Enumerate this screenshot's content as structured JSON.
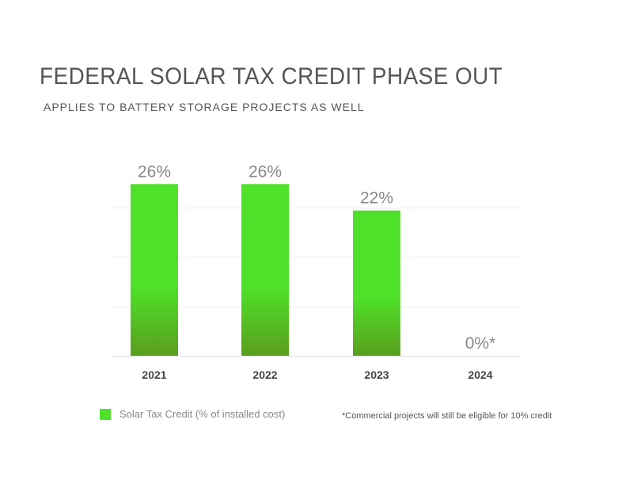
{
  "header": {
    "title": "FEDERAL SOLAR TAX CREDIT PHASE OUT",
    "subtitle": "APPLIES TO BATTERY STORAGE PROJECTS AS WELL"
  },
  "chart_data": {
    "type": "bar",
    "categories": [
      "2021",
      "2022",
      "2023",
      "2024"
    ],
    "series": [
      {
        "name": "Solar Tax Credit (% of installed cost)",
        "values": [
          26,
          26,
          22,
          0
        ],
        "labels": [
          "26%",
          "26%",
          "22%",
          "0%*"
        ]
      }
    ],
    "ylim": [
      0,
      30
    ],
    "grid": true,
    "legend": "bottom-left",
    "colors": {
      "bar_top": "#4fe12a",
      "bar_bottom": "#5a9e1d"
    }
  },
  "footnote": "*Commercial projects will still be eligible for 10% credit"
}
